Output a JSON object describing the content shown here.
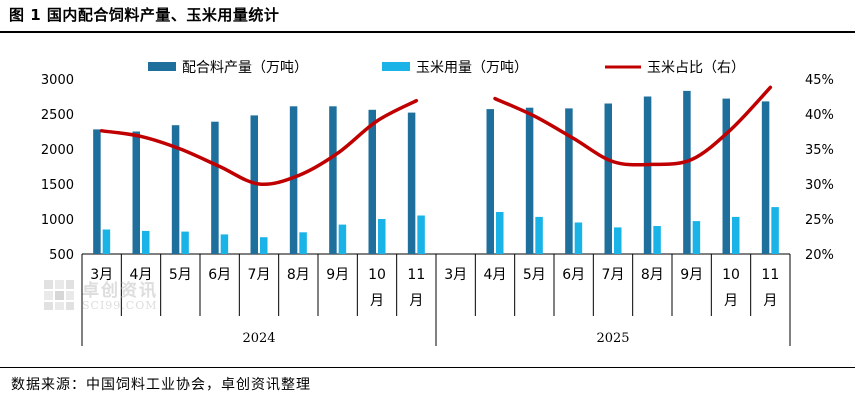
{
  "title": "图 1 国内配合饲料产量、玉米用量统计",
  "source": "数据来源：中国饲料工业协会，卓创资讯整理",
  "watermark": {
    "name": "卓创资讯",
    "site": "SCI99.COM"
  },
  "colors": {
    "feed": "#1f6f9c",
    "corn": "#19b3e8",
    "ratio": "#c00000"
  },
  "chart_data": {
    "type": "bar",
    "title": "图 1 国内配合饲料产量、玉米用量统计",
    "groups": [
      {
        "year": "2024",
        "months": [
          "3月",
          "4月",
          "5月",
          "6月",
          "7月",
          "8月",
          "9月",
          "10\n月",
          "11\n月"
        ]
      },
      {
        "year": "2025",
        "months": [
          "3月",
          "4月",
          "5月",
          "6月",
          "7月",
          "8月",
          "9月",
          "10\n月",
          "11\n月"
        ]
      }
    ],
    "series": [
      {
        "name": "配合料产量（万吨）",
        "type": "bar",
        "axis": "left",
        "values": [
          2280,
          2250,
          2340,
          2390,
          2480,
          2610,
          2610,
          2560,
          2520,
          null,
          2570,
          2590,
          2580,
          2650,
          2750,
          2830,
          2720,
          2680
        ]
      },
      {
        "name": "玉米用量（万吨）",
        "type": "bar",
        "axis": "left",
        "values": [
          850,
          830,
          820,
          780,
          740,
          810,
          920,
          1000,
          1050,
          null,
          1100,
          1030,
          950,
          880,
          900,
          970,
          1030,
          1170
        ]
      },
      {
        "name": "玉米占比（右）",
        "type": "line",
        "axis": "right",
        "values": [
          37.6,
          36.8,
          35.0,
          32.5,
          30.0,
          31.2,
          34.4,
          39.0,
          41.9,
          null,
          42.2,
          39.7,
          36.5,
          33.2,
          32.8,
          33.5,
          37.8,
          43.8
        ]
      }
    ],
    "y_left": {
      "ylim": [
        500,
        3000
      ],
      "ticks": [
        "500",
        "1000",
        "1500",
        "2000",
        "2500",
        "3000"
      ]
    },
    "y_right": {
      "ylim": [
        20,
        45
      ],
      "ticks": [
        "20%",
        "25%",
        "30%",
        "35%",
        "40%",
        "45%"
      ]
    },
    "legend": "top-center",
    "grid": false
  }
}
